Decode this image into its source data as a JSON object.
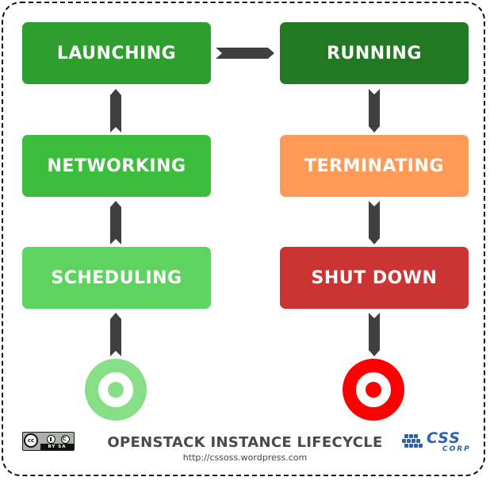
{
  "diagram": {
    "states": [
      {
        "id": "launching",
        "label": "LAUNCHING",
        "color": "#2e9e2e"
      },
      {
        "id": "running",
        "label": "RUNNING",
        "color": "#237923"
      },
      {
        "id": "networking",
        "label": "NETWORKING",
        "color": "#3dbd3d"
      },
      {
        "id": "terminating",
        "label": "TERMINATING",
        "color": "#ff9a58"
      },
      {
        "id": "scheduling",
        "label": "SCHEDULING",
        "color": "#5fd35f"
      },
      {
        "id": "shutdown",
        "label": "SHUT DOWN",
        "color": "#cc3333"
      }
    ],
    "arrow_color": "#3f3f3f",
    "start_color": "#86df86",
    "end_color": "#ff0000"
  },
  "footer": {
    "title": "OPENSTACK INSTANCE LIFECYCLE",
    "url": "http://cssoss.wordpress.com"
  },
  "license": {
    "cc": "cc",
    "terms": "BY SA"
  },
  "logo": {
    "brand": "CSS",
    "sub": "CORP",
    "color": "#2a63ad"
  }
}
